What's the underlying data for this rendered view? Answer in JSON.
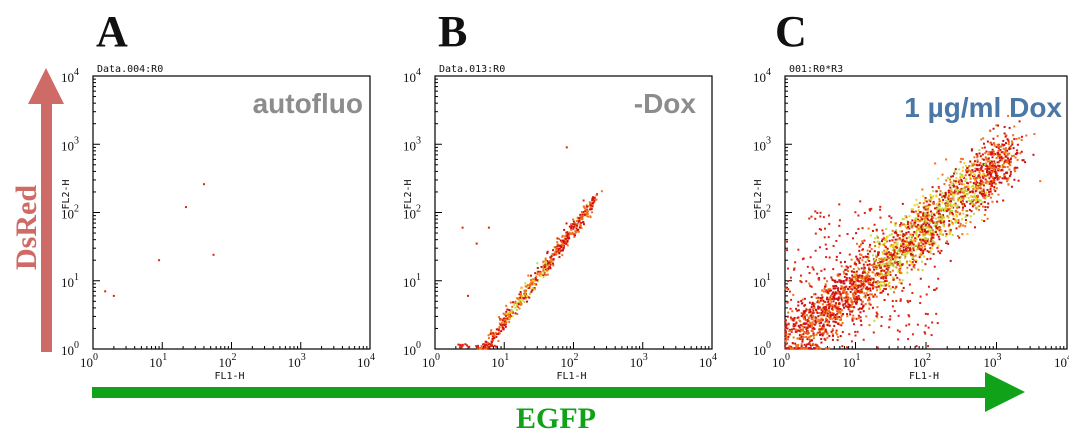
{
  "panels": [
    {
      "letter": "A",
      "file_label": "Data.004:R0",
      "condition": "autofluo",
      "condition_color": "#8c8c8c",
      "xlabel": "FL1-H",
      "ylabel": "FL2-H",
      "xticks": [
        "10",
        "10",
        "10",
        "10",
        "10"
      ],
      "xtick_exp": [
        "0",
        "1",
        "2",
        "3",
        "4"
      ],
      "yticks": [
        "10",
        "10",
        "10",
        "10",
        "10"
      ],
      "ytick_exp": [
        "0",
        "1",
        "2",
        "3",
        "4"
      ]
    },
    {
      "letter": "B",
      "file_label": "Data.013:R0",
      "condition": "-Dox",
      "condition_color": "#8c8c8c",
      "xlabel": "FL1-H",
      "ylabel": "FL2-H",
      "xticks": [
        "10",
        "10",
        "10",
        "10",
        "10"
      ],
      "xtick_exp": [
        "0",
        "1",
        "2",
        "3",
        "4"
      ],
      "yticks": [
        "10",
        "10",
        "10",
        "10",
        "10"
      ],
      "ytick_exp": [
        "0",
        "1",
        "2",
        "3",
        "4"
      ]
    },
    {
      "letter": "C",
      "file_label": "001:R0*R3",
      "condition": "1 µg/ml Dox",
      "condition_color": "#4a77a6",
      "xlabel": "FL1-H",
      "ylabel": "FL2-H",
      "xticks": [
        "10",
        "10",
        "10",
        "10",
        "10"
      ],
      "xtick_exp": [
        "0",
        "1",
        "2",
        "3",
        "4"
      ],
      "yticks": [
        "10",
        "10",
        "10",
        "10",
        "10"
      ],
      "ytick_exp": [
        "0",
        "1",
        "2",
        "3",
        "4"
      ]
    }
  ],
  "y_channel_label": "DsRed",
  "y_channel_color": "#cf6b66",
  "x_channel_label": "EGFP",
  "x_channel_color": "#10a31a",
  "chart_data": [
    {
      "type": "scatter",
      "panel": "A",
      "xscale": "log",
      "yscale": "log",
      "xlim": [
        1,
        10000
      ],
      "ylim": [
        1,
        10000
      ],
      "xlabel": "FL1-H",
      "ylabel": "FL2-H",
      "points": [
        [
          1.5,
          7
        ],
        [
          2.0,
          6
        ],
        [
          9,
          20
        ],
        [
          22,
          120
        ],
        [
          40,
          260
        ],
        [
          55,
          24
        ]
      ]
    },
    {
      "type": "scatter",
      "panel": "B",
      "xscale": "log",
      "yscale": "log",
      "xlim": [
        1,
        10000
      ],
      "ylim": [
        1,
        10000
      ],
      "xlabel": "FL1-H",
      "ylabel": "FL2-H",
      "distribution": "diagonal population from ~(5, 1) to ~(200, 150)",
      "outliers": [
        [
          80,
          900
        ],
        [
          2.5,
          60
        ],
        [
          6,
          60
        ],
        [
          4,
          35
        ],
        [
          3,
          6
        ],
        [
          140,
          150
        ]
      ]
    },
    {
      "type": "scatter",
      "panel": "C",
      "xscale": "log",
      "yscale": "log",
      "xlim": [
        1,
        10000
      ],
      "ylim": [
        1,
        10000
      ],
      "xlabel": "FL1-H",
      "ylabel": "FL2-H",
      "distribution": "broad diagonal population from ~(1, 1) to ~(2000, 1000)"
    }
  ]
}
